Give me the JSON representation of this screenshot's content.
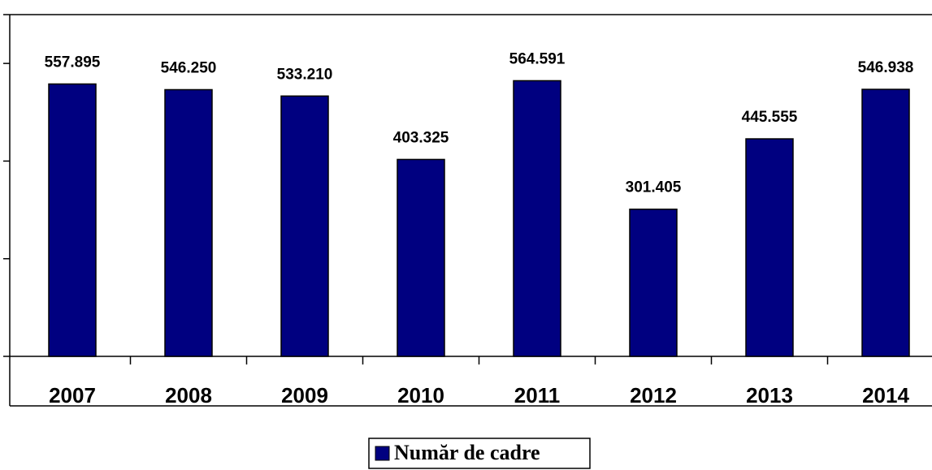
{
  "chart_data": {
    "type": "bar",
    "categories": [
      "2007",
      "2008",
      "2009",
      "2010",
      "2011",
      "2012",
      "2013",
      "2014"
    ],
    "series": [
      {
        "name": "Număr de cadre",
        "color": "#000080",
        "values": [
          557895,
          546250,
          533210,
          403325,
          564591,
          301405,
          445555,
          546938
        ],
        "value_labels": [
          "557.895",
          "546.250",
          "533.210",
          "403.325",
          "564.591",
          "301.405",
          "445.555",
          "546.938"
        ]
      }
    ],
    "ylim": [
      0,
      700000
    ],
    "yticks": [
      0,
      200000,
      400000,
      600000,
      700000
    ],
    "legend": "bottom"
  }
}
